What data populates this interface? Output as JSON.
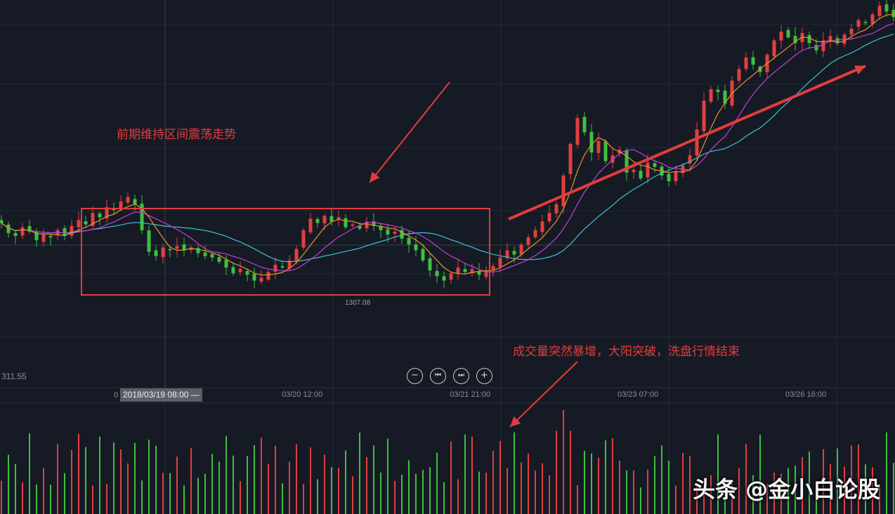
{
  "colors": {
    "background": "#161a25",
    "up": "#e0403f",
    "down": "#3fbf3f",
    "ma5": "#e8922a",
    "ma10": "#c040d8",
    "ma20": "#39c4d6",
    "annotation": "#e23d3d"
  },
  "chart": {
    "price_label": "311.55",
    "low_price_label": "1307.08"
  },
  "time_axis": {
    "cursor_lead": "0",
    "cursor_label": "2018/03/19 08:00 —",
    "labels": [
      "03/20 12:00",
      "03/21 21:00",
      "03/23 07:00",
      "03/26 16:00"
    ]
  },
  "controls": {
    "zoom_out": "−",
    "prev": "⏮",
    "next": "⏭",
    "zoom_in": "+"
  },
  "annotations": {
    "range_note": "前期维持区间震荡走势",
    "breakout_note": "成交量突然暴增，大阳突破，洗盘行情结束"
  },
  "watermark": "头条 @金小白论股",
  "chart_data": {
    "type": "candlestick",
    "description_series": [
      "price candles",
      "MA short",
      "MA mid",
      "MA long",
      "volume bars"
    ],
    "close": [
      1345,
      1338,
      1336,
      1342,
      1339,
      1333,
      1337,
      1335,
      1340,
      1336,
      1343,
      1347,
      1344,
      1352,
      1349,
      1356,
      1354,
      1360,
      1363,
      1358,
      1340,
      1325,
      1322,
      1328,
      1326,
      1329,
      1326,
      1328,
      1324,
      1322,
      1321,
      1318,
      1314,
      1310,
      1313,
      1309,
      1305,
      1307,
      1311,
      1316,
      1314,
      1319,
      1327,
      1340,
      1348,
      1345,
      1350,
      1346,
      1349,
      1342,
      1344,
      1341,
      1346,
      1343,
      1340,
      1337,
      1339,
      1334,
      1330,
      1326,
      1319,
      1312,
      1308,
      1305,
      1310,
      1314,
      1311,
      1313,
      1309,
      1312,
      1315,
      1321,
      1326,
      1323,
      1330,
      1335,
      1340,
      1346,
      1352,
      1358,
      1378,
      1400,
      1418,
      1408,
      1394,
      1402,
      1388,
      1392,
      1396,
      1380,
      1382,
      1376,
      1387,
      1384,
      1378,
      1374,
      1381,
      1385,
      1392,
      1410,
      1430,
      1438,
      1436,
      1428,
      1444,
      1452,
      1460,
      1455,
      1450,
      1462,
      1472,
      1478,
      1474,
      1470,
      1477,
      1470,
      1465,
      1472,
      1475,
      1470,
      1476,
      1480,
      1486,
      1484,
      1490,
      1496,
      1492,
      1488
    ],
    "volume_note": "volume spikes at breakout near 03/21 21:00"
  }
}
